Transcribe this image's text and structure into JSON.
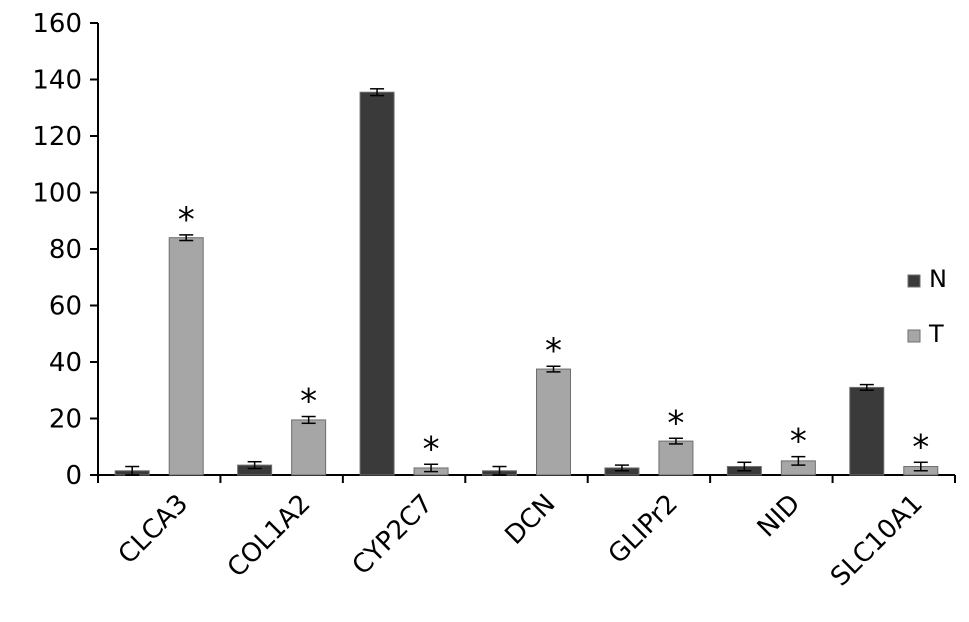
{
  "chart_data": {
    "type": "bar",
    "categories": [
      "CLCA3",
      "COL1A2",
      "CYP2C7",
      "DCN",
      "GLIPr2",
      "NID",
      "SLC10A1"
    ],
    "series": [
      {
        "name": "N",
        "color": "#3a3a3a",
        "values": [
          1.5,
          3.5,
          135.5,
          1.5,
          2.5,
          3,
          31
        ],
        "errors": [
          1.5,
          1.2,
          1.2,
          1.5,
          1.0,
          1.5,
          1.0
        ]
      },
      {
        "name": "T",
        "color": "#a6a6a6",
        "values": [
          84,
          19.5,
          2.5,
          37.5,
          12,
          5,
          3
        ],
        "errors": [
          1.0,
          1.2,
          1.3,
          1.0,
          1.0,
          1.5,
          1.5
        ],
        "significance": [
          "*",
          "*",
          "*",
          "*",
          "*",
          "*",
          "*"
        ]
      }
    ],
    "ylim": [
      0,
      160
    ],
    "yticks": [
      0,
      20,
      40,
      60,
      80,
      100,
      120,
      140,
      160
    ],
    "legend_position": "right",
    "grid": false
  }
}
